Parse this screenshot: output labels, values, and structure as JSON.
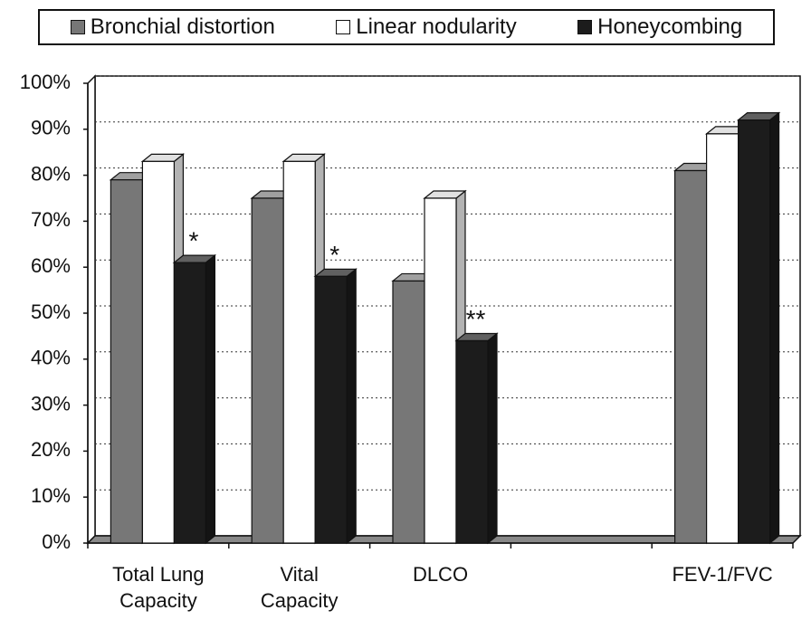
{
  "chart_data": {
    "type": "bar3d",
    "categories": [
      "Total Lung Capacity",
      "Vital Capacity",
      "DLCO",
      null,
      "FEV-1/FVC"
    ],
    "series": [
      {
        "name": "Bronchial distortion",
        "color": "#777777",
        "values": [
          79,
          75,
          57,
          null,
          81
        ]
      },
      {
        "name": "Linear nodularity",
        "color": "#ffffff",
        "values": [
          83,
          83,
          75,
          null,
          89
        ]
      },
      {
        "name": "Honeycombing",
        "color": "#1c1c1c",
        "values": [
          61,
          58,
          44,
          null,
          92
        ],
        "labels": [
          "*",
          "*",
          "**",
          null,
          null
        ]
      }
    ],
    "ylim": [
      0,
      100
    ],
    "yticks": [
      {
        "value": 0,
        "label": "0%"
      },
      {
        "value": 10,
        "label": "10%"
      },
      {
        "value": 20,
        "label": "20%"
      },
      {
        "value": 30,
        "label": "30%"
      },
      {
        "value": 40,
        "label": "40%"
      },
      {
        "value": 50,
        "label": "50%"
      },
      {
        "value": 60,
        "label": "60%"
      },
      {
        "value": 70,
        "label": "70%"
      },
      {
        "value": 80,
        "label": "80%"
      },
      {
        "value": 90,
        "label": "90%"
      },
      {
        "value": 100,
        "label": "100%"
      }
    ],
    "grid": true,
    "legend": "top"
  }
}
